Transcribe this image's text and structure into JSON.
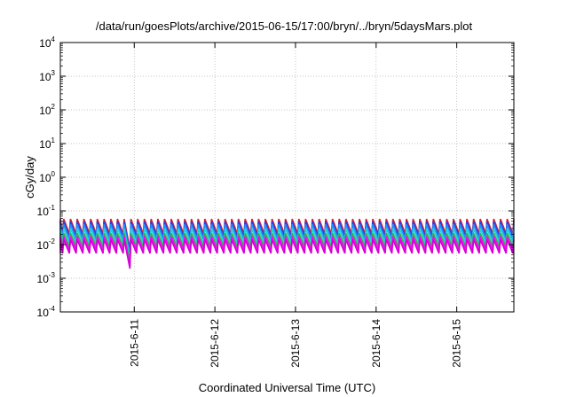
{
  "chart_data": {
    "type": "line",
    "title": "/data/run/goesPlots/archive/2015-06-15/17:00/bryn/../bryn/5daysMars.plot",
    "xlabel": "Coordinated Universal Time (UTC)",
    "ylabel": "cGy/day",
    "yscale": "log",
    "ylim": [
      0.0001,
      10000
    ],
    "xlim": [
      "2015-06-10T02:00",
      "2015-06-15T17:00"
    ],
    "grid": true,
    "x_ticks": [
      {
        "label": "2015-6-11",
        "time": "2015-06-11T00:00"
      },
      {
        "label": "2015-6-12",
        "time": "2015-06-12T00:00"
      },
      {
        "label": "2015-6-13",
        "time": "2015-06-13T00:00"
      },
      {
        "label": "2015-6-14",
        "time": "2015-06-14T00:00"
      },
      {
        "label": "2015-6-15",
        "time": "2015-06-15T00:00"
      }
    ],
    "y_ticks": [
      {
        "base": "10",
        "exp": "-4",
        "value": 0.0001
      },
      {
        "base": "10",
        "exp": "-3",
        "value": 0.001
      },
      {
        "base": "10",
        "exp": "-2",
        "value": 0.01
      },
      {
        "base": "10",
        "exp": "-1",
        "value": 0.1
      },
      {
        "base": "10",
        "exp": "0",
        "value": 1
      },
      {
        "base": "10",
        "exp": "1",
        "value": 10
      },
      {
        "base": "10",
        "exp": "2",
        "value": 100
      },
      {
        "base": "10",
        "exp": "3",
        "value": 1000
      },
      {
        "base": "10",
        "exp": "4",
        "value": 10000
      }
    ],
    "sawtooth": {
      "period_hours": 2,
      "peak_phase": 0.15,
      "first_peak": "2015-06-10T03:00",
      "dip": {
        "time": "2015-06-10T22:00",
        "factor": 0.35
      }
    },
    "series": [
      {
        "color": "#e8201f",
        "peak": 0.058,
        "trough": 0.021
      },
      {
        "color": "#3a3ad8",
        "peak": 0.05,
        "trough": 0.018
      },
      {
        "color": "#1e90ff",
        "peak": 0.04,
        "trough": 0.014
      },
      {
        "color": "#20d6d0",
        "peak": 0.03,
        "trough": 0.011
      },
      {
        "color": "#2fb04a",
        "peak": 0.022,
        "trough": 0.0085
      },
      {
        "color": "#ff00ff",
        "peak": 0.0175,
        "trough": 0.0068
      },
      {
        "color": "#d400d4",
        "peak": 0.014,
        "trough": 0.0055
      }
    ]
  }
}
